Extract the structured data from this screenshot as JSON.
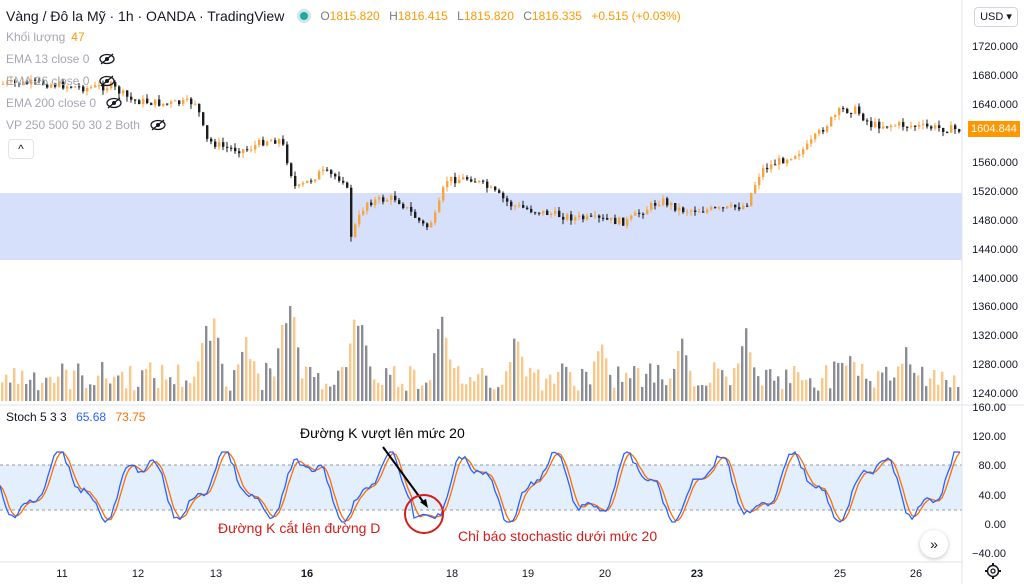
{
  "header": {
    "symbol_title": "Vàng / Đô la Mỹ · 1h · OANDA · TradingView",
    "ohlc": [
      {
        "label": "O",
        "value": "1815.820"
      },
      {
        "label": "H",
        "value": "1816.415"
      },
      {
        "label": "L",
        "value": "1815.820"
      },
      {
        "label": "C",
        "value": "1816.335"
      },
      {
        "label": "",
        "value": "+0.515 (+0.03%)"
      }
    ],
    "status_color": "#26a69a"
  },
  "legend": {
    "volume_label": "Khối lượng",
    "volume_value": "47",
    "ema13": "EMA 13 close 0",
    "ema26": "EMA 26 close 0",
    "ema200": "EMA 200 close 0",
    "vp": "VP 250 500 50 30 2 Both",
    "eye_icon": "eye-crossed-icon",
    "collapse": "^"
  },
  "currency": "USD ▾",
  "last_price": "1604.844",
  "price_axis": [
    "1720.000",
    "1680.000",
    "1640.000",
    "1600.000",
    "1560.000",
    "1520.000",
    "1480.000",
    "1440.000",
    "1400.000",
    "1360.000",
    "1320.000",
    "1280.000",
    "1240.000"
  ],
  "stoch": {
    "name": "Stoch 5 3 3",
    "k": "65.68",
    "d": "73.75",
    "axis": [
      "160.00",
      "120.00",
      "80.00",
      "40.00",
      "0.00",
      "−40.00"
    ],
    "k_color": "#2962ff",
    "d_color": "#ff6d00"
  },
  "time_axis": [
    "11",
    "12",
    "13",
    "16",
    "18",
    "19",
    "20",
    "23",
    "25",
    "26"
  ],
  "annotations": {
    "k_cross_20": "Đường K vượt lên mức 20",
    "k_cross_d": "Đường K cắt lên đường D",
    "below_20": "Chỉ báo stochastic dưới mức 20"
  },
  "colors": {
    "up": "#f7a541",
    "down": "#1c1c1c",
    "zone": "#d6e0fb",
    "stoch_band": "#e3effc",
    "annotation_red": "#d81b1b"
  },
  "buttons": {
    "go_to_realtime": "»"
  }
}
